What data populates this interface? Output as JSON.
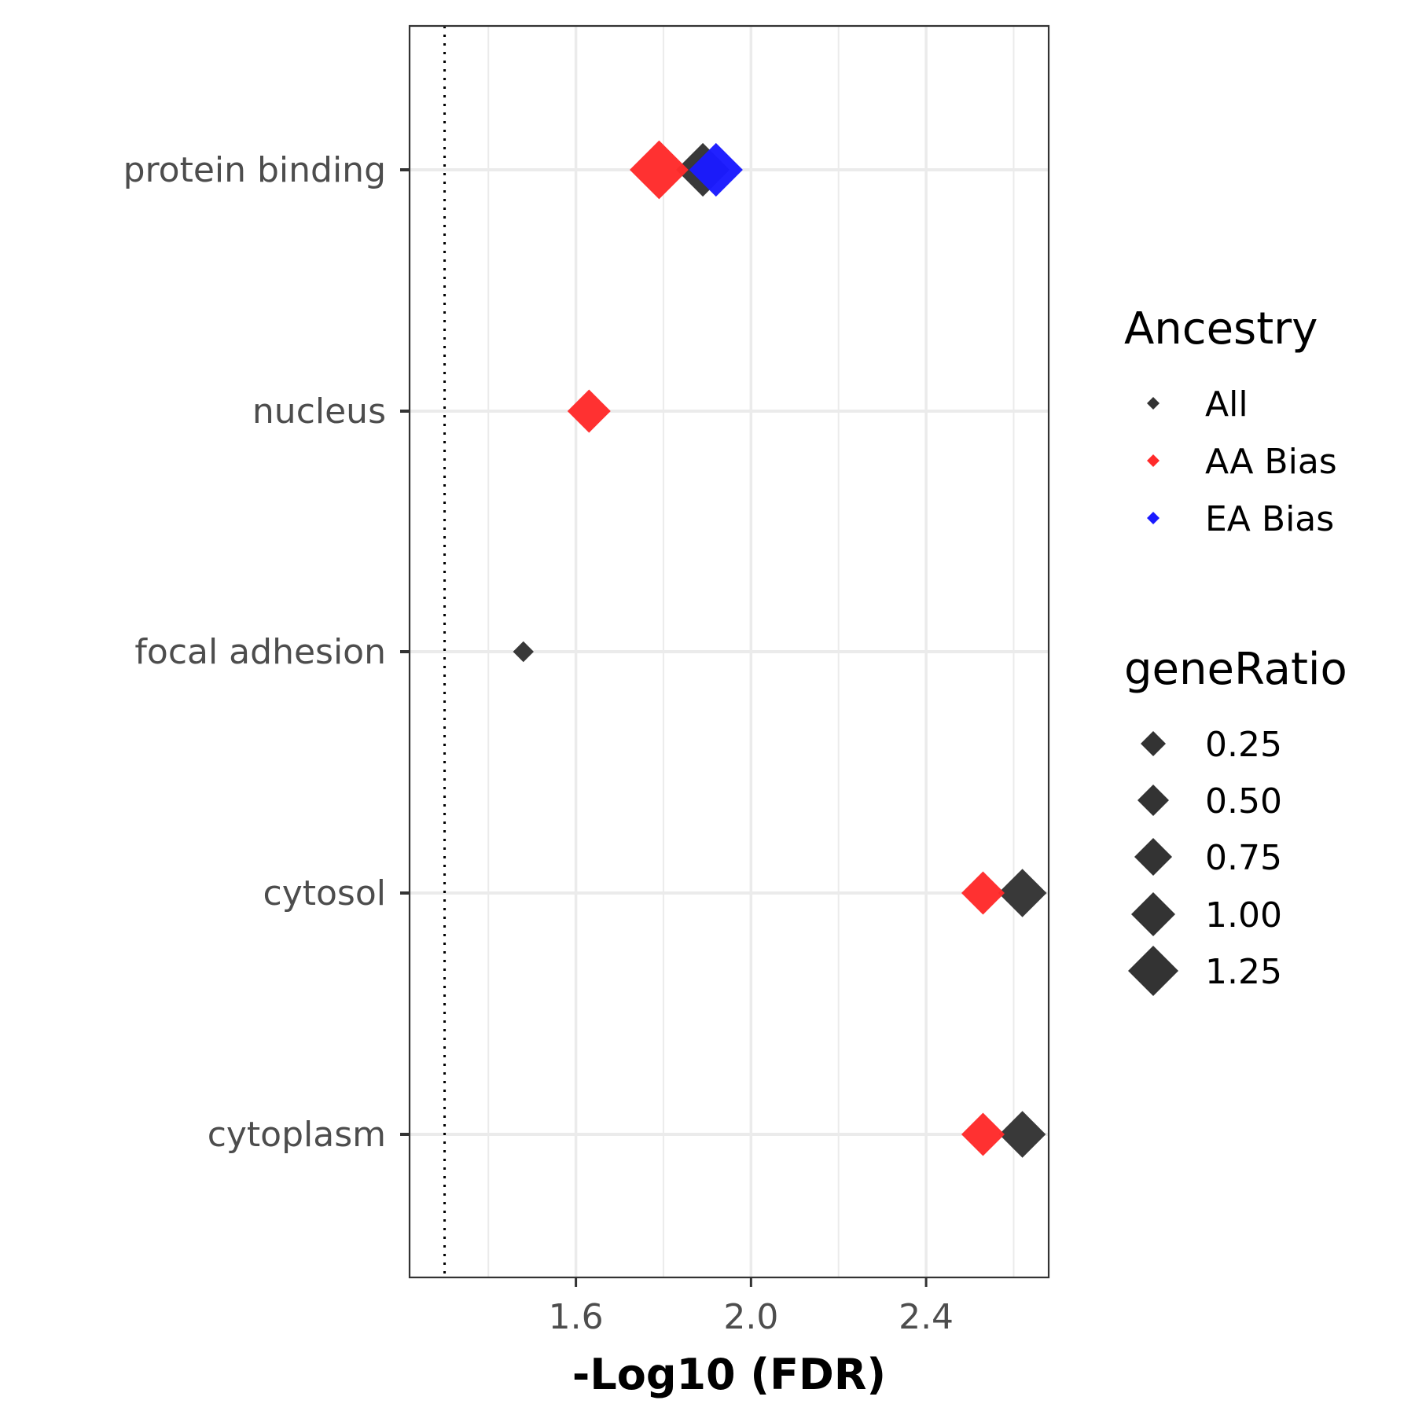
{
  "chart_data": {
    "type": "scatter",
    "xlabel": "-Log10 (FDR)",
    "ylabel": "",
    "xlim": [
      1.22,
      2.68
    ],
    "xticks": [
      "1.6",
      "2.0",
      "2.4"
    ],
    "x_major_ticks": [
      1.6,
      2.0,
      2.4
    ],
    "x_minor_ticks": [
      1.4,
      1.8,
      2.2,
      2.6
    ],
    "reference_line": {
      "x": 1.3,
      "style": "dotted"
    },
    "grid": true,
    "categories": [
      "protein binding",
      "nucleus",
      "focal adhesion",
      "cytosol",
      "cytoplasm"
    ],
    "legend_position": "right",
    "color_legend": {
      "title": "Ancestry",
      "entries": [
        {
          "name": "All",
          "color": "#333333"
        },
        {
          "name": "AA Bias",
          "color": "#ff2a2a"
        },
        {
          "name": "EA Bias",
          "color": "#1a1aff"
        }
      ]
    },
    "size_legend": {
      "title": "geneRatio",
      "labels": [
        "0.25",
        "0.50",
        "0.75",
        "1.00",
        "1.25"
      ],
      "values": [
        0.25,
        0.5,
        0.75,
        1.0,
        1.25
      ]
    },
    "series": [
      {
        "name": "All",
        "color": "#333333",
        "points": [
          {
            "category": "protein binding",
            "x": 1.89,
            "geneRatio": 1.05
          },
          {
            "category": "focal adhesion",
            "x": 1.48,
            "geneRatio": 0.1
          },
          {
            "category": "cytosol",
            "x": 2.62,
            "geneRatio": 0.9
          },
          {
            "category": "cytoplasm",
            "x": 2.62,
            "geneRatio": 0.85
          }
        ]
      },
      {
        "name": "AA Bias",
        "color": "#ff2a2a",
        "points": [
          {
            "category": "protein binding",
            "x": 1.79,
            "geneRatio": 1.2
          },
          {
            "category": "nucleus",
            "x": 1.63,
            "geneRatio": 0.75
          },
          {
            "category": "cytosol",
            "x": 2.53,
            "geneRatio": 0.75
          },
          {
            "category": "cytoplasm",
            "x": 2.53,
            "geneRatio": 0.75
          }
        ]
      },
      {
        "name": "EA Bias",
        "color": "#1a1aff",
        "points": [
          {
            "category": "protein binding",
            "x": 1.92,
            "geneRatio": 1.05
          }
        ]
      }
    ]
  }
}
